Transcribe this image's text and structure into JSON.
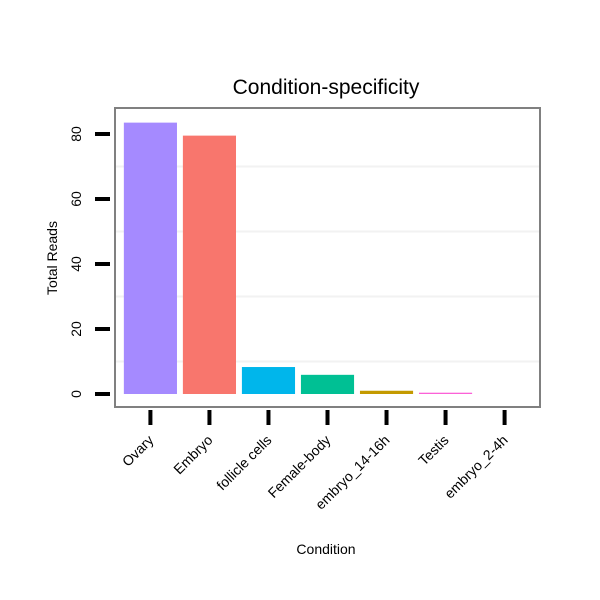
{
  "chart_data": {
    "type": "bar",
    "title": "Condition-specificity",
    "xlabel": "Condition",
    "ylabel": "Total Reads",
    "ylim": [
      -4,
      88
    ],
    "yticks": [
      0,
      20,
      40,
      60,
      80
    ],
    "grid": "horizontal-minor",
    "legend": "none",
    "categories": [
      "Ovary",
      "Embryo",
      "follicle cells",
      "Female-body",
      "embryo_14-16h",
      "Testis",
      "embryo_2-4h"
    ],
    "values": [
      83.5,
      79.5,
      8.3,
      5.9,
      1.0,
      0.4,
      0
    ],
    "colors": [
      "#A58AFF",
      "#F8766D",
      "#00B6EB",
      "#00C094",
      "#C49A00",
      "#FB61D7",
      "#53B400"
    ]
  }
}
